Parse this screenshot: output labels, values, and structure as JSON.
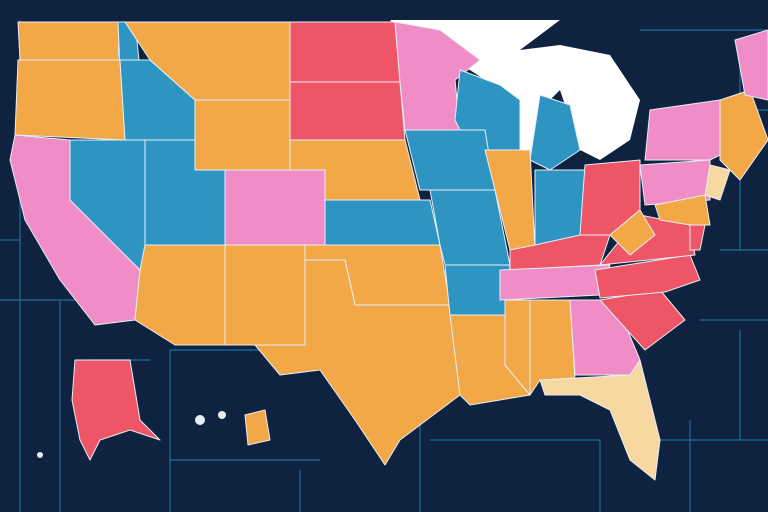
{
  "map": {
    "type": "choropleth",
    "region": "United States",
    "background_color": "#0f2341",
    "grid_color": "#1f6f99",
    "border_color": "#e8eef5",
    "palette": {
      "orange": "#f3a847",
      "blue": "#2e95c3",
      "pink": "#f08cc6",
      "red": "#ee5566",
      "cream": "#f7d8a0",
      "lake": "#ffffff"
    },
    "text_labels": []
  }
}
